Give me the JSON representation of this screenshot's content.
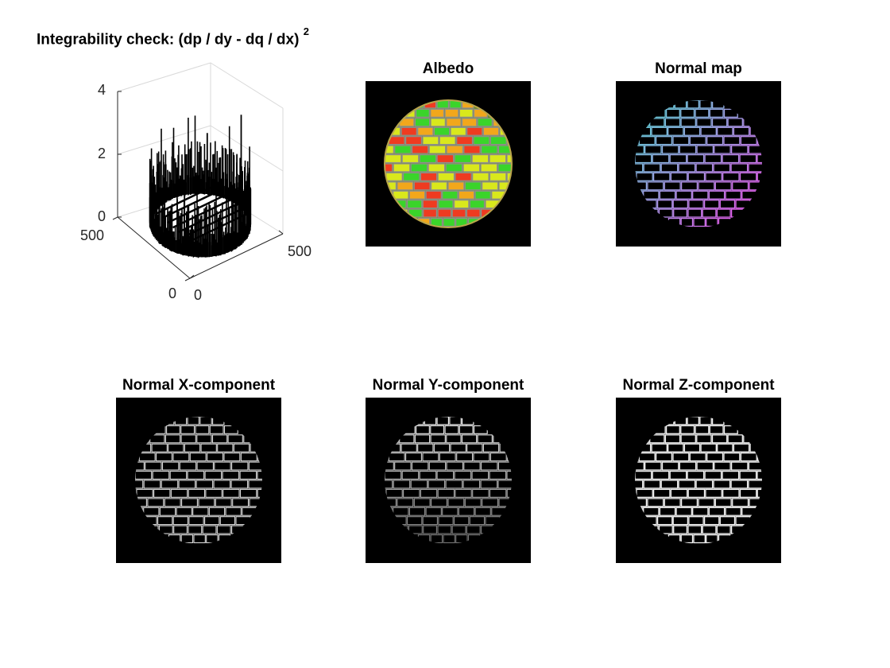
{
  "panels": {
    "integrability": {
      "title": "Integrability check: (dp / dy - dq / dx)",
      "title_sup": "2",
      "z_ticks": [
        "4",
        "2",
        "0"
      ],
      "left_axis_ticks": [
        "500",
        "0"
      ],
      "right_axis_ticks": [
        "0",
        "500"
      ]
    },
    "albedo": {
      "title": "Albedo"
    },
    "normal_map": {
      "title": "Normal map"
    },
    "normal_x": {
      "title": "Normal X-component"
    },
    "normal_y": {
      "title": "Normal Y-component"
    },
    "normal_z": {
      "title": "Normal Z-component"
    }
  },
  "chart_data": [
    {
      "type": "surface3d",
      "title": "Integrability check: (dp / dy - dq / dx) 2",
      "zlim": [
        0,
        4
      ],
      "xlim": [
        0,
        500
      ],
      "ylim": [
        0,
        500
      ],
      "zticks": [
        0,
        2,
        4
      ],
      "xticks": [
        0,
        500
      ],
      "yticks": [
        0,
        500
      ],
      "grid": true,
      "note_values": "spiky ring of residuals mostly between 0 and ~2.8 along sphere boundary"
    },
    {
      "type": "image",
      "title": "Albedo",
      "colormap": "rgb"
    },
    {
      "type": "image",
      "title": "Normal map",
      "colormap": "rgb"
    },
    {
      "type": "image",
      "title": "Normal X-component",
      "colormap": "gray"
    },
    {
      "type": "image",
      "title": "Normal Y-component",
      "colormap": "gray"
    },
    {
      "type": "image",
      "title": "Normal Z-component",
      "colormap": "gray"
    }
  ],
  "colors": {
    "brick_mortar": "#8f8f8f",
    "brick_green": "#3ad42a",
    "brick_yellow": "#d9e81c",
    "brick_orange": "#f2a71b",
    "brick_red": "#ef3b20",
    "sphere_edge": "#c7b24a"
  }
}
